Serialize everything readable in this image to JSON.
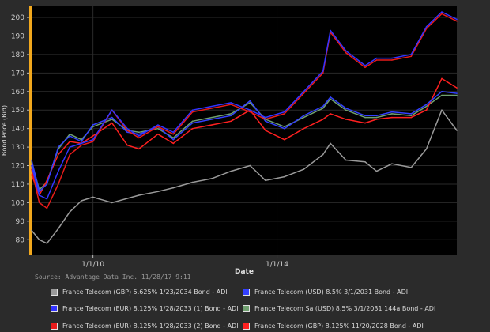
{
  "chart_data": {
    "type": "line",
    "title": "",
    "xlabel": "Date",
    "ylabel": "Bond Price (Bid)",
    "ylim": [
      72,
      206
    ],
    "yticks": [
      80,
      90,
      100,
      110,
      120,
      130,
      140,
      150,
      160,
      170,
      180,
      190,
      200
    ],
    "xlim": [
      "2008-09-01",
      "2017-11-28"
    ],
    "xticks": [
      {
        "date": "2010-01-01",
        "label": "1/1/10"
      },
      {
        "date": "2014-01-01",
        "label": "1/1/14"
      }
    ],
    "grid": true,
    "legend_position": "bottom",
    "series": [
      {
        "name": "France Telecom (GBP) 5.625% 1/23/2034 Bond - ADI",
        "color": "#9a9a9a",
        "x": [
          "2008-09-01",
          "2008-11-01",
          "2009-01-01",
          "2009-04-01",
          "2009-07-01",
          "2009-10-01",
          "2010-01-01",
          "2010-06-01",
          "2011-01-01",
          "2011-06-01",
          "2011-10-01",
          "2012-03-01",
          "2012-08-01",
          "2013-01-01",
          "2013-06-01",
          "2013-10-01",
          "2014-03-01",
          "2014-08-01",
          "2015-01-01",
          "2015-03-01",
          "2015-07-01",
          "2015-12-01",
          "2016-03-01",
          "2016-07-01",
          "2016-12-01",
          "2017-04-01",
          "2017-08-01",
          "2017-11-28"
        ],
        "values": [
          85,
          80,
          78,
          86,
          95,
          101,
          103,
          100,
          104,
          106,
          108,
          111,
          113,
          117,
          120,
          112,
          114,
          118,
          126,
          132,
          123,
          122,
          117,
          121,
          119,
          129,
          150,
          139
        ]
      },
      {
        "name": "France Telecom (USD) 8.5% 3/1/2031 Bond - ADI",
        "color": "#3340ff",
        "x": [
          "2008-09-01",
          "2008-11-01",
          "2009-01-01",
          "2009-04-01",
          "2009-07-01",
          "2009-10-01",
          "2010-01-01",
          "2010-06-01",
          "2010-10-01",
          "2011-01-01",
          "2011-06-01",
          "2011-10-01",
          "2012-03-01",
          "2012-08-01",
          "2013-01-01",
          "2013-06-01",
          "2013-10-01",
          "2014-03-01",
          "2014-08-01",
          "2015-01-01",
          "2015-03-01",
          "2015-07-01",
          "2015-12-01",
          "2016-03-01",
          "2016-07-01",
          "2016-12-01",
          "2017-04-01",
          "2017-08-01",
          "2017-11-28"
        ],
        "values": [
          123,
          106,
          110,
          130,
          136,
          133,
          142,
          146,
          138,
          137,
          141,
          134,
          143,
          145,
          147,
          155,
          144,
          140,
          147,
          152,
          157,
          151,
          147,
          147,
          149,
          148,
          153,
          160,
          159
        ]
      },
      {
        "name": "France Telecom (EUR) 8.125% 1/28/2033 (1) Bond - ADI",
        "color": "#3333ff",
        "x": [
          "2008-09-01",
          "2008-11-01",
          "2009-01-01",
          "2009-04-01",
          "2009-07-01",
          "2009-10-01",
          "2010-01-01",
          "2010-06-01",
          "2010-10-01",
          "2011-01-01",
          "2011-06-01",
          "2011-10-01",
          "2012-03-01",
          "2012-08-01",
          "2013-01-01",
          "2013-06-01",
          "2013-10-01",
          "2014-03-01",
          "2014-08-01",
          "2015-01-01",
          "2015-03-01",
          "2015-07-01",
          "2015-12-01",
          "2016-03-01",
          "2016-07-01",
          "2016-12-01",
          "2017-04-01",
          "2017-08-01",
          "2017-11-28"
        ],
        "values": [
          120,
          104,
          102,
          117,
          130,
          132,
          134,
          150,
          140,
          136,
          142,
          138,
          150,
          152,
          154,
          150,
          146,
          149,
          160,
          171,
          193,
          182,
          174,
          178,
          178,
          180,
          195,
          203,
          199
        ]
      },
      {
        "name": "France Telecom Sa (USD) 8.5% 3/1/2031 144a Bond - ADI",
        "color": "#6f9f6f",
        "x": [
          "2008-09-01",
          "2008-11-01",
          "2009-01-01",
          "2009-04-01",
          "2009-07-01",
          "2009-10-01",
          "2010-01-01",
          "2010-06-01",
          "2010-10-01",
          "2011-01-01",
          "2011-06-01",
          "2011-10-01",
          "2012-03-01",
          "2012-08-01",
          "2013-01-01",
          "2013-06-01",
          "2013-10-01",
          "2014-03-01",
          "2014-08-01",
          "2015-01-01",
          "2015-03-01",
          "2015-07-01",
          "2015-12-01",
          "2016-03-01",
          "2016-07-01",
          "2016-12-01",
          "2017-04-01",
          "2017-08-01",
          "2017-11-28"
        ],
        "values": [
          122,
          107,
          111,
          129,
          137,
          134,
          141,
          145,
          139,
          138,
          140,
          135,
          144,
          146,
          148,
          154,
          145,
          141,
          146,
          151,
          156,
          150,
          146,
          146,
          148,
          147,
          152,
          158,
          158
        ]
      },
      {
        "name": "France Telecom (EUR) 8.125% 1/28/2033 (2) Bond - ADI",
        "color": "#e81b1b",
        "x": [
          "2008-09-01",
          "2008-11-01",
          "2009-01-01",
          "2009-04-01",
          "2009-07-01",
          "2009-10-01",
          "2010-01-01",
          "2010-06-01",
          "2010-10-01",
          "2011-01-01",
          "2011-06-01",
          "2011-10-01",
          "2012-03-01",
          "2012-08-01",
          "2013-01-01",
          "2013-06-01",
          "2013-10-01",
          "2014-03-01",
          "2014-08-01",
          "2015-01-01",
          "2015-03-01",
          "2015-07-01",
          "2015-12-01",
          "2016-03-01",
          "2016-07-01",
          "2016-12-01",
          "2017-04-01",
          "2017-08-01",
          "2017-11-28"
        ],
        "values": [
          118,
          100,
          97,
          110,
          126,
          131,
          133,
          150,
          139,
          135,
          141,
          137,
          149,
          151,
          153,
          149,
          145,
          148,
          159,
          170,
          192,
          181,
          173,
          177,
          177,
          179,
          194,
          202,
          198
        ]
      },
      {
        "name": "France Telecom (GBP) 8.125% 11/20/2028 Bond - ADI",
        "color": "#ff2020",
        "x": [
          "2008-09-01",
          "2008-11-01",
          "2009-01-01",
          "2009-04-01",
          "2009-07-01",
          "2009-10-01",
          "2010-01-01",
          "2010-06-01",
          "2010-10-01",
          "2011-01-01",
          "2011-06-01",
          "2011-10-01",
          "2012-03-01",
          "2012-08-01",
          "2013-01-01",
          "2013-06-01",
          "2013-10-01",
          "2014-03-01",
          "2014-08-01",
          "2015-01-01",
          "2015-03-01",
          "2015-07-01",
          "2015-12-01",
          "2016-03-01",
          "2016-07-01",
          "2016-12-01",
          "2017-04-01",
          "2017-08-01",
          "2017-11-28"
        ],
        "values": [
          115,
          104,
          112,
          126,
          133,
          132,
          136,
          143,
          131,
          129,
          137,
          132,
          140,
          142,
          144,
          150,
          139,
          134,
          140,
          145,
          148,
          145,
          143,
          145,
          146,
          146,
          150,
          167,
          162
        ]
      }
    ]
  },
  "source_text": "Source: Advantage Data Inc. 11/28/17 9:11",
  "colors": {
    "page_bg": "#2b2b2b",
    "plot_bg": "#000000",
    "grid": "#2a2a2a",
    "accent_bar": "#f2a81d"
  },
  "legend_order": [
    0,
    1,
    2,
    3,
    4,
    5
  ]
}
